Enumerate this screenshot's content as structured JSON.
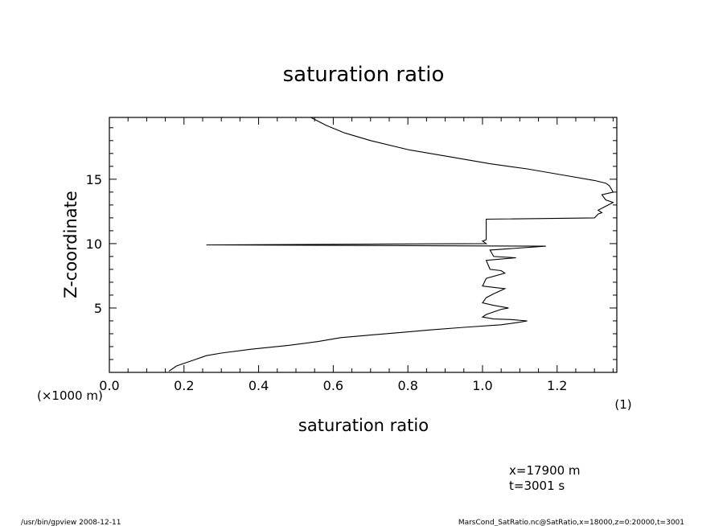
{
  "chart_data": {
    "type": "line",
    "title": "saturation ratio",
    "xlabel": "saturation ratio",
    "xunit": "(1)",
    "ylabel": "Z-coordinate",
    "yunit": "(×1000 m)",
    "xlim": [
      0.0,
      1.36
    ],
    "ylim": [
      0,
      19.8
    ],
    "xticks": [
      "0.0",
      "0.2",
      "0.4",
      "0.6",
      "0.8",
      "1.0",
      "1.2"
    ],
    "yticks": [
      "5",
      "10",
      "15"
    ],
    "grid": false,
    "series": [
      {
        "x": [
          0.16,
          0.18,
          0.22,
          0.26,
          0.3,
          0.38,
          0.48,
          0.56,
          0.62,
          0.7,
          0.78,
          0.86,
          0.95,
          1.05,
          1.1,
          1.12,
          1.08,
          1.03,
          1.0,
          1.01,
          1.05,
          1.07,
          1.03,
          1.0,
          1.01,
          1.03,
          1.06,
          1.03,
          1.0,
          1.01,
          1.06,
          1.05,
          1.02,
          1.01,
          1.05,
          1.09,
          1.03,
          1.02,
          1.17,
          0.26,
          1.01,
          1.0,
          1.01,
          1.01,
          1.3,
          1.31,
          1.32,
          1.31,
          1.33,
          1.35,
          1.33,
          1.32,
          1.35,
          1.34,
          1.33,
          1.3,
          1.22,
          1.12,
          1.02,
          0.92,
          0.8,
          0.7,
          0.63,
          0.58,
          0.54
        ],
        "y": [
          0.1,
          0.5,
          0.9,
          1.3,
          1.5,
          1.8,
          2.1,
          2.4,
          2.7,
          2.9,
          3.1,
          3.3,
          3.5,
          3.7,
          3.9,
          4.0,
          4.1,
          4.15,
          4.3,
          4.5,
          4.9,
          5.0,
          5.2,
          5.4,
          5.8,
          6.1,
          6.5,
          6.6,
          6.7,
          7.3,
          7.7,
          7.9,
          8.0,
          8.7,
          8.8,
          8.9,
          9.0,
          9.5,
          9.8,
          9.9,
          10.0,
          10.2,
          10.3,
          11.9,
          12.0,
          12.3,
          12.4,
          12.6,
          12.9,
          13.2,
          13.4,
          13.8,
          14.0,
          14.5,
          14.7,
          14.9,
          15.3,
          15.8,
          16.2,
          16.7,
          17.3,
          18.0,
          18.6,
          19.2,
          19.8
        ]
      }
    ]
  },
  "annotations": {
    "position_x": "x=17900  m",
    "time": "t=3001  s"
  },
  "footer": {
    "left": "/usr/bin/gpview   2008-12-11",
    "right": "MarsCond_SatRatio.nc@SatRatio,x=18000,z=0:20000,t=3001"
  }
}
